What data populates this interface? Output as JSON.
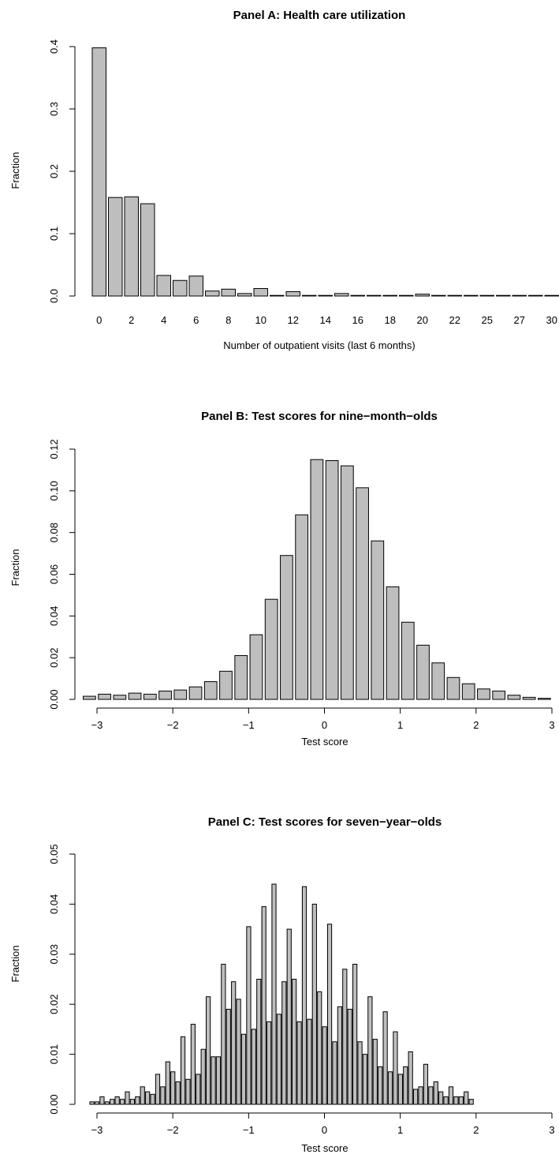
{
  "chart_data": [
    {
      "type": "bar",
      "title": "Panel A: Health care utilization",
      "xlabel": "Number of outpatient visits (last 6 months)",
      "ylabel": "Fraction",
      "ylim": [
        0,
        0.4
      ],
      "yticks": [
        "0.0",
        "0.1",
        "0.2",
        "0.3",
        "0.4"
      ],
      "categories": [
        "0",
        "1",
        "2",
        "3",
        "4",
        "5",
        "6",
        "7",
        "8",
        "9",
        "10",
        "11",
        "12",
        "13",
        "14",
        "15",
        "16",
        "17",
        "18",
        "19",
        "20",
        "21",
        "22",
        "24",
        "25",
        "26",
        "27",
        "28",
        "30"
      ],
      "tick_labels": [
        "0",
        "2",
        "4",
        "6",
        "8",
        "10",
        "12",
        "14",
        "16",
        "18",
        "20",
        "22",
        "25",
        "27",
        "30"
      ],
      "values": [
        0.398,
        0.158,
        0.159,
        0.148,
        0.033,
        0.025,
        0.032,
        0.008,
        0.011,
        0.004,
        0.012,
        0.001,
        0.007,
        0.001,
        0.001,
        0.004,
        0.001,
        0.001,
        0.001,
        0.001,
        0.003,
        0.001,
        0.001,
        0.001,
        0.001,
        0.001,
        0.001,
        0.001,
        0.001
      ],
      "grid": false
    },
    {
      "type": "bar",
      "title": "Panel B: Test scores for nine−month−olds",
      "xlabel": "Test score",
      "ylabel": "Fraction",
      "ylim": [
        0,
        0.12
      ],
      "yticks": [
        "0.00",
        "0.02",
        "0.04",
        "0.06",
        "0.08",
        "0.10",
        "0.12"
      ],
      "xlim": [
        -3,
        3
      ],
      "x_ticks": [
        "−3",
        "−2",
        "−1",
        "0",
        "1",
        "2",
        "3"
      ],
      "bin_width": 0.2,
      "bin_starts": [
        -3.2,
        -3.0,
        -2.8,
        -2.6,
        -2.4,
        -2.2,
        -2.0,
        -1.8,
        -1.6,
        -1.4,
        -1.2,
        -1.0,
        -0.8,
        -0.6,
        -0.4,
        -0.2,
        0.0,
        0.2,
        0.4,
        0.6,
        0.8,
        1.0,
        1.2,
        1.4,
        1.6,
        1.8,
        2.0,
        2.2,
        2.4,
        2.6,
        2.8
      ],
      "values": [
        0.0015,
        0.0025,
        0.002,
        0.003,
        0.0025,
        0.004,
        0.0045,
        0.006,
        0.0085,
        0.0135,
        0.021,
        0.031,
        0.048,
        0.069,
        0.0885,
        0.115,
        0.1145,
        0.112,
        0.1015,
        0.076,
        0.054,
        0.037,
        0.026,
        0.0175,
        0.0105,
        0.0075,
        0.005,
        0.004,
        0.002,
        0.001,
        0.0005
      ],
      "grid": false
    },
    {
      "type": "bar",
      "title": "Panel C: Test scores for seven−year−olds",
      "xlabel": "Test score",
      "ylabel": "Fraction",
      "ylim": [
        0,
        0.05
      ],
      "yticks": [
        "0.00",
        "0.01",
        "0.02",
        "0.03",
        "0.04",
        "0.05"
      ],
      "xlim": [
        -3,
        3
      ],
      "x_ticks": [
        "−3",
        "−2",
        "−1",
        "0",
        "1",
        "2",
        "3"
      ],
      "bin_width": 0.0667,
      "bin_start": -3.1,
      "values": [
        0.0005,
        0.0005,
        0.0015,
        0.0005,
        0.001,
        0.0015,
        0.001,
        0.0025,
        0.001,
        0.0015,
        0.0035,
        0.0025,
        0.002,
        0.006,
        0.0035,
        0.0085,
        0.0065,
        0.0045,
        0.0135,
        0.005,
        0.016,
        0.006,
        0.011,
        0.0215,
        0.0095,
        0.0095,
        0.028,
        0.019,
        0.0245,
        0.021,
        0.014,
        0.0355,
        0.015,
        0.025,
        0.0395,
        0.0165,
        0.044,
        0.018,
        0.0245,
        0.035,
        0.025,
        0.0165,
        0.0435,
        0.017,
        0.04,
        0.0225,
        0.0155,
        0.036,
        0.0125,
        0.0195,
        0.027,
        0.019,
        0.028,
        0.0125,
        0.01,
        0.0215,
        0.013,
        0.0075,
        0.0185,
        0.0065,
        0.0145,
        0.006,
        0.0075,
        0.0105,
        0.003,
        0.0035,
        0.008,
        0.0035,
        0.0045,
        0.0025,
        0.0015,
        0.0035,
        0.0015,
        0.0015,
        0.0025,
        0.001
      ],
      "grid": false
    }
  ]
}
